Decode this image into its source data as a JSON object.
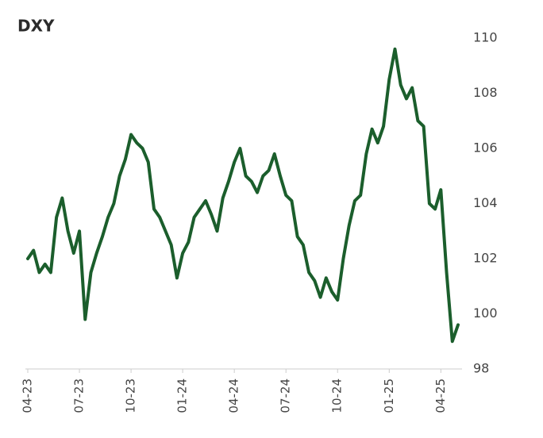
{
  "chart_data": {
    "type": "line",
    "title": "DXY",
    "categories": [
      "04-23",
      null,
      null,
      null,
      null,
      null,
      null,
      null,
      null,
      "07-23",
      null,
      null,
      null,
      null,
      null,
      null,
      null,
      null,
      "10-23",
      null,
      null,
      null,
      null,
      null,
      null,
      null,
      null,
      "01-24",
      null,
      null,
      null,
      null,
      null,
      null,
      null,
      null,
      "04-24",
      null,
      null,
      null,
      null,
      null,
      null,
      null,
      null,
      "07-24",
      null,
      null,
      null,
      null,
      null,
      null,
      null,
      null,
      "10-24",
      null,
      null,
      null,
      null,
      null,
      null,
      null,
      null,
      "01-25",
      null,
      null,
      null,
      null,
      null,
      null,
      null,
      null,
      "04-25",
      null,
      null,
      null
    ],
    "series": [
      {
        "name": "DXY",
        "color": "#1b5e2c",
        "values": [
          102,
          102.3,
          101.5,
          101.8,
          101.5,
          103.5,
          104.2,
          103,
          102.2,
          103,
          99.8,
          101.5,
          102.2,
          102.8,
          103.5,
          104,
          105,
          105.6,
          106.5,
          106.2,
          106,
          105.5,
          103.8,
          103.5,
          103,
          102.5,
          101.3,
          102.2,
          102.6,
          103.5,
          103.8,
          104.1,
          103.6,
          103,
          104.2,
          104.8,
          105.5,
          106,
          105,
          104.8,
          104.4,
          105,
          105.2,
          105.8,
          105,
          104.3,
          104.1,
          102.8,
          102.5,
          101.5,
          101.2,
          100.6,
          101.3,
          100.8,
          100.5,
          102,
          103.2,
          104.1,
          104.3,
          105.8,
          106.7,
          106.2,
          106.8,
          108.5,
          109.6,
          108.3,
          107.8,
          108.2,
          107,
          106.8,
          104,
          103.8,
          104.5,
          101.5,
          99,
          99.6
        ]
      }
    ],
    "ylim": [
      98,
      110
    ],
    "yticks": [
      98,
      100,
      102,
      104,
      106,
      108,
      110
    ],
    "y_axis_side": "right",
    "grid": false
  }
}
